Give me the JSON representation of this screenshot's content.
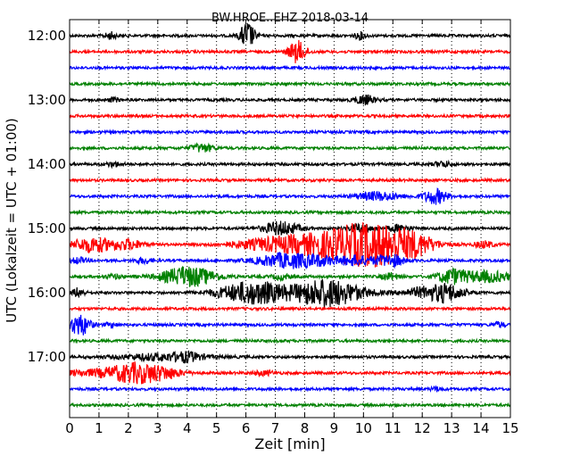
{
  "chart_data": {
    "type": "line",
    "title": "BW.HROE..EHZ 2018-03-14",
    "xlabel": "Zeit  [min]",
    "ylabel": "UTC (Lokalzeit = UTC + 01:00)",
    "xlim": [
      0,
      15
    ],
    "x_ticks": [
      0,
      1,
      2,
      3,
      4,
      5,
      6,
      7,
      8,
      9,
      10,
      11,
      12,
      13,
      14,
      15
    ],
    "x_tick_labels": [
      "0",
      "1",
      "2",
      "3",
      "4",
      "5",
      "6",
      "7",
      "8",
      "9",
      "10",
      "11",
      "12",
      "13",
      "14",
      "15"
    ],
    "y_ticks": [
      {
        "label": "12:00",
        "trace_index": 0
      },
      {
        "label": "13:00",
        "trace_index": 4
      },
      {
        "label": "14:00",
        "trace_index": 8
      },
      {
        "label": "15:00",
        "trace_index": 12
      },
      {
        "label": "16:00",
        "trace_index": 16
      },
      {
        "label": "17:00",
        "trace_index": 20
      }
    ],
    "grid": {
      "x": "dotted-vertical",
      "y": false
    },
    "trace_interval_minutes": 15,
    "color_cycle": [
      "#000000",
      "#ff0000",
      "#0000ff",
      "#008000"
    ],
    "series": [
      {
        "start": "12:00",
        "events": [
          {
            "t": 6.05,
            "amp": 1.0,
            "dur": 0.25
          },
          {
            "t": 1.4,
            "amp": 0.25,
            "dur": 0.2
          },
          {
            "t": 9.9,
            "amp": 0.25,
            "dur": 0.2
          }
        ]
      },
      {
        "start": "12:15",
        "events": [
          {
            "t": 7.75,
            "amp": 0.8,
            "dur": 0.3
          }
        ]
      },
      {
        "start": "12:30",
        "events": []
      },
      {
        "start": "12:45",
        "events": []
      },
      {
        "start": "13:00",
        "events": [
          {
            "t": 10.05,
            "amp": 0.35,
            "dur": 0.35
          },
          {
            "t": 1.5,
            "amp": 0.15,
            "dur": 0.2
          }
        ]
      },
      {
        "start": "13:15",
        "events": []
      },
      {
        "start": "13:30",
        "events": []
      },
      {
        "start": "13:45",
        "events": [
          {
            "t": 4.5,
            "amp": 0.3,
            "dur": 0.4
          }
        ]
      },
      {
        "start": "14:00",
        "events": [
          {
            "t": 1.5,
            "amp": 0.15,
            "dur": 0.3
          },
          {
            "t": 12.7,
            "amp": 0.2,
            "dur": 0.3
          }
        ]
      },
      {
        "start": "14:15",
        "events": []
      },
      {
        "start": "14:30",
        "events": [
          {
            "t": 10.5,
            "amp": 0.3,
            "dur": 0.8
          },
          {
            "t": 12.45,
            "amp": 0.55,
            "dur": 0.4
          }
        ]
      },
      {
        "start": "14:45",
        "events": []
      },
      {
        "start": "15:00",
        "events": [
          {
            "t": 7.2,
            "amp": 0.5,
            "dur": 0.6
          },
          {
            "t": 9.9,
            "amp": 0.3,
            "dur": 0.4
          },
          {
            "t": 11.2,
            "amp": 0.25,
            "dur": 0.4
          }
        ]
      },
      {
        "start": "15:15",
        "events": [
          {
            "t": 0.8,
            "amp": 0.55,
            "dur": 0.7
          },
          {
            "t": 2.0,
            "amp": 0.35,
            "dur": 0.5
          },
          {
            "t": 7.0,
            "amp": 0.45,
            "dur": 1.4
          },
          {
            "t": 9.4,
            "amp": 1.0,
            "dur": 1.6
          },
          {
            "t": 10.7,
            "amp": 1.0,
            "dur": 1.3
          },
          {
            "t": 11.8,
            "amp": 0.4,
            "dur": 0.6
          },
          {
            "t": 14.1,
            "amp": 0.25,
            "dur": 0.3
          }
        ]
      },
      {
        "start": "15:30",
        "events": [
          {
            "t": 0.3,
            "amp": 0.2,
            "dur": 0.3
          },
          {
            "t": 2.5,
            "amp": 0.2,
            "dur": 0.3
          },
          {
            "t": 7.4,
            "amp": 0.55,
            "dur": 1.0
          },
          {
            "t": 8.6,
            "amp": 0.25,
            "dur": 0.6
          },
          {
            "t": 9.7,
            "amp": 0.35,
            "dur": 0.5
          },
          {
            "t": 10.7,
            "amp": 0.3,
            "dur": 0.5
          },
          {
            "t": 11.1,
            "amp": 0.25,
            "dur": 0.3
          }
        ]
      },
      {
        "start": "15:45",
        "events": [
          {
            "t": 4.05,
            "amp": 0.75,
            "dur": 0.9
          },
          {
            "t": 13.0,
            "amp": 0.5,
            "dur": 0.5
          },
          {
            "t": 14.2,
            "amp": 0.4,
            "dur": 0.9
          },
          {
            "t": 10.9,
            "amp": 0.25,
            "dur": 0.3
          },
          {
            "t": 1.5,
            "amp": 0.15,
            "dur": 0.3
          },
          {
            "t": 7.2,
            "amp": 0.2,
            "dur": 0.3
          }
        ]
      },
      {
        "start": "16:00",
        "events": [
          {
            "t": 0.3,
            "amp": 0.35,
            "dur": 0.2
          },
          {
            "t": 6.3,
            "amp": 0.85,
            "dur": 1.2
          },
          {
            "t": 8.3,
            "amp": 0.5,
            "dur": 0.8
          },
          {
            "t": 9.1,
            "amp": 0.75,
            "dur": 1.0
          },
          {
            "t": 12.4,
            "amp": 0.5,
            "dur": 0.9
          },
          {
            "t": 12.9,
            "amp": 0.3,
            "dur": 0.4
          }
        ]
      },
      {
        "start": "16:15",
        "events": []
      },
      {
        "start": "16:30",
        "events": [
          {
            "t": 0.35,
            "amp": 0.8,
            "dur": 0.35
          },
          {
            "t": 1.4,
            "amp": 0.15,
            "dur": 0.2
          },
          {
            "t": 14.6,
            "amp": 0.2,
            "dur": 0.2
          }
        ]
      },
      {
        "start": "16:45",
        "events": []
      },
      {
        "start": "17:00",
        "events": [
          {
            "t": 3.2,
            "amp": 0.25,
            "dur": 1.5
          },
          {
            "t": 4.0,
            "amp": 0.2,
            "dur": 0.4
          }
        ]
      },
      {
        "start": "17:15",
        "events": [
          {
            "t": 1.0,
            "amp": 0.2,
            "dur": 1.5
          },
          {
            "t": 2.3,
            "amp": 0.65,
            "dur": 0.9
          },
          {
            "t": 3.3,
            "amp": 0.25,
            "dur": 0.6
          },
          {
            "t": 6.6,
            "amp": 0.15,
            "dur": 0.4
          }
        ]
      },
      {
        "start": "17:30",
        "events": [
          {
            "t": 12.5,
            "amp": 0.15,
            "dur": 0.2
          }
        ]
      },
      {
        "start": "17:45",
        "events": []
      }
    ]
  }
}
